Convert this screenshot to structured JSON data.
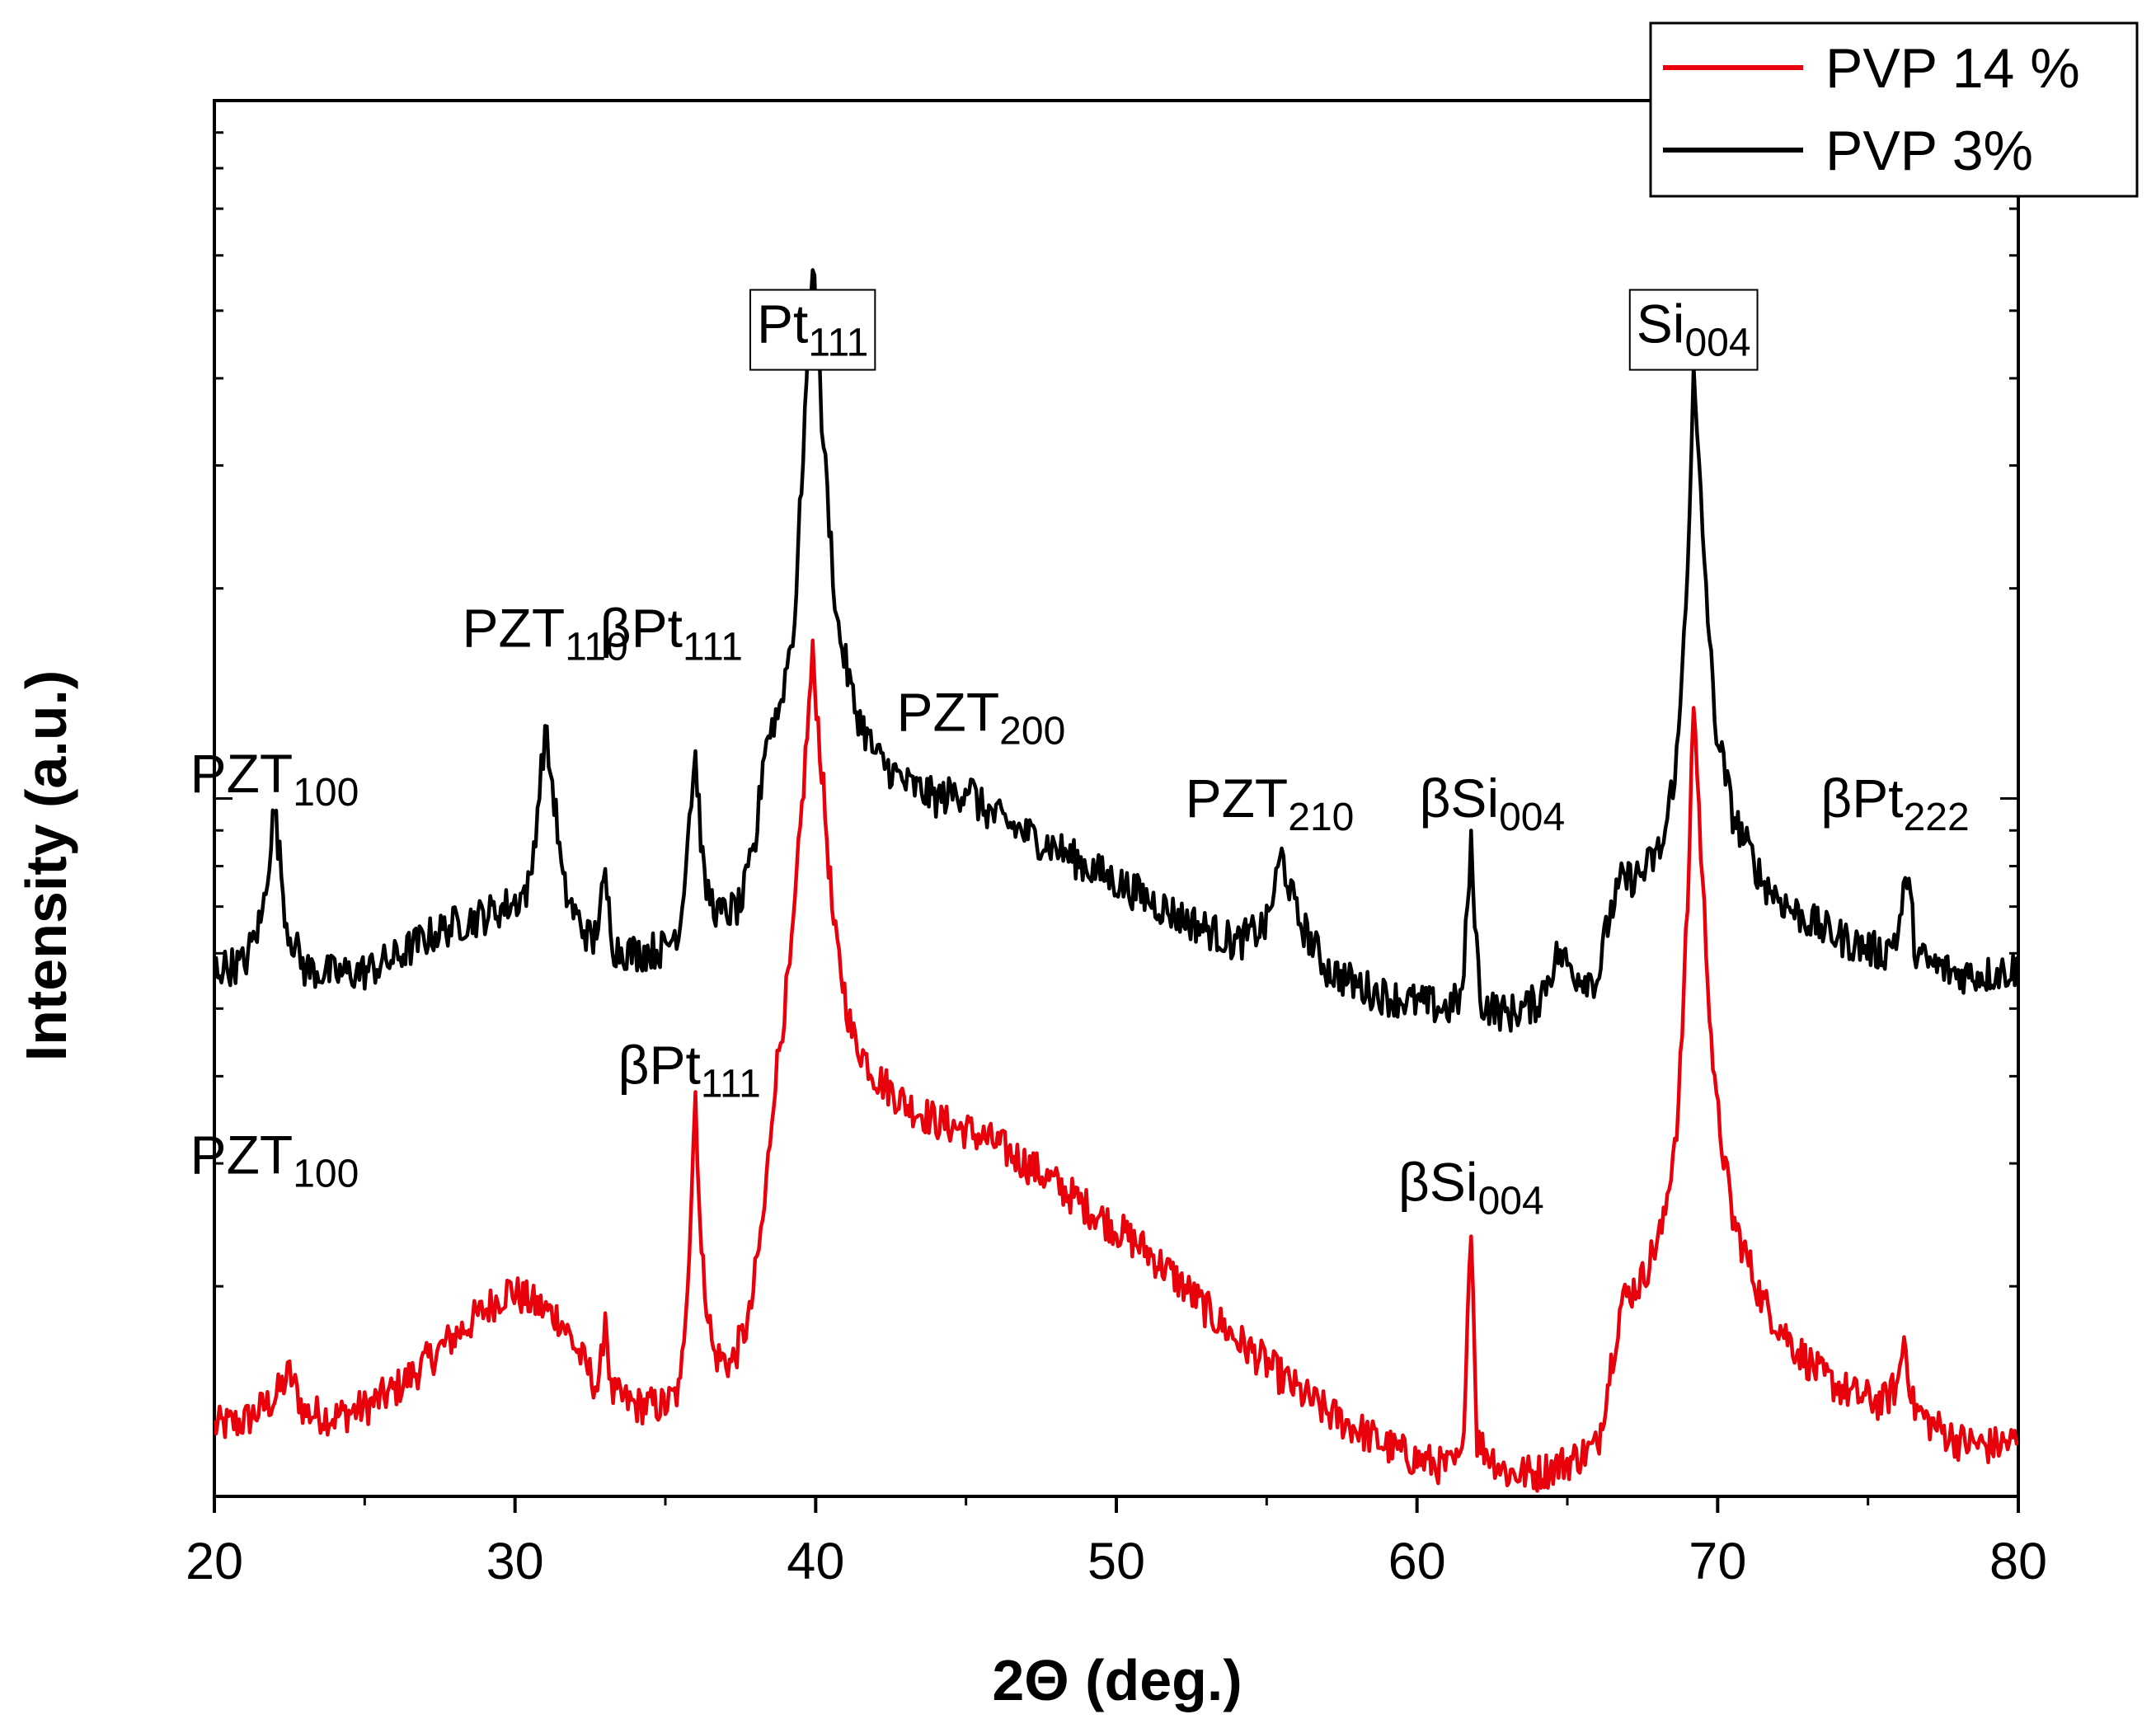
{
  "chart_data": {
    "type": "line",
    "title": "",
    "xlabel": "2Θ (deg.)",
    "ylabel": "Intensity (a.u.)",
    "xlim": [
      20,
      80
    ],
    "x_ticks": [
      "20",
      "30",
      "40",
      "50",
      "60",
      "70",
      "80"
    ],
    "y_scale": "log",
    "y_tick_labels_shown": false,
    "legend_position": "top-right",
    "series": [
      {
        "name": "PVP 14 %",
        "color": "#e8000b",
        "points": [
          [
            20.0,
            1.26
          ],
          [
            21.0,
            1.28
          ],
          [
            22.0,
            1.38
          ],
          [
            22.5,
            1.5
          ],
          [
            23.0,
            1.32
          ],
          [
            24.0,
            1.3
          ],
          [
            25.0,
            1.34
          ],
          [
            26.0,
            1.42
          ],
          [
            27.0,
            1.55
          ],
          [
            28.0,
            1.7
          ],
          [
            29.0,
            1.85
          ],
          [
            29.8,
            1.98
          ],
          [
            30.5,
            1.9
          ],
          [
            31.5,
            1.8
          ],
          [
            32.3,
            1.55
          ],
          [
            32.8,
            1.42
          ],
          [
            33.0,
            1.85
          ],
          [
            33.2,
            1.4
          ],
          [
            34.0,
            1.35
          ],
          [
            35.0,
            1.35
          ],
          [
            35.5,
            1.42
          ],
          [
            35.8,
            2.3
          ],
          [
            36.0,
            3.8
          ],
          [
            36.2,
            2.2
          ],
          [
            36.6,
            1.6
          ],
          [
            37.2,
            1.55
          ],
          [
            37.8,
            1.8
          ],
          [
            38.3,
            2.6
          ],
          [
            38.6,
            3.8
          ],
          [
            39.2,
            6.0
          ],
          [
            39.6,
            10.5
          ],
          [
            39.9,
            16.0
          ],
          [
            40.2,
            11.0
          ],
          [
            40.6,
            6.5
          ],
          [
            41.2,
            4.6
          ],
          [
            42.0,
            4.0
          ],
          [
            43.0,
            3.65
          ],
          [
            44.0,
            3.45
          ],
          [
            45.0,
            3.35
          ],
          [
            46.0,
            3.2
          ],
          [
            47.0,
            3.0
          ],
          [
            48.0,
            2.8
          ],
          [
            49.0,
            2.6
          ],
          [
            50.0,
            2.42
          ],
          [
            51.0,
            2.25
          ],
          [
            52.0,
            2.05
          ],
          [
            53.0,
            1.85
          ],
          [
            54.0,
            1.68
          ],
          [
            55.0,
            1.55
          ],
          [
            56.0,
            1.42
          ],
          [
            57.0,
            1.32
          ],
          [
            58.0,
            1.25
          ],
          [
            59.0,
            1.18
          ],
          [
            60.0,
            1.13
          ],
          [
            61.0,
            1.1
          ],
          [
            61.5,
            1.12
          ],
          [
            61.8,
            2.5
          ],
          [
            62.0,
            1.2
          ],
          [
            63.0,
            1.08
          ],
          [
            64.0,
            1.08
          ],
          [
            65.0,
            1.12
          ],
          [
            66.0,
            1.18
          ],
          [
            66.4,
            1.5
          ],
          [
            66.8,
            1.9
          ],
          [
            67.5,
            2.05
          ],
          [
            68.2,
            2.45
          ],
          [
            68.7,
            3.6
          ],
          [
            69.0,
            7.0
          ],
          [
            69.2,
            14.0
          ],
          [
            69.5,
            7.5
          ],
          [
            69.9,
            3.8
          ],
          [
            70.5,
            2.5
          ],
          [
            71.5,
            1.9
          ],
          [
            72.5,
            1.65
          ],
          [
            73.5,
            1.48
          ],
          [
            74.5,
            1.4
          ],
          [
            75.5,
            1.36
          ],
          [
            76.0,
            1.45
          ],
          [
            76.2,
            1.7
          ],
          [
            76.5,
            1.35
          ],
          [
            77.0,
            1.28
          ],
          [
            78.0,
            1.2
          ],
          [
            79.0,
            1.18
          ],
          [
            80.0,
            1.2
          ]
        ]
      },
      {
        "name": "PVP 3%",
        "color": "#000000",
        "points": [
          [
            20.0,
            5.7
          ],
          [
            21.0,
            5.8
          ],
          [
            21.6,
            6.8
          ],
          [
            22.0,
            9.7
          ],
          [
            22.4,
            6.6
          ],
          [
            23.0,
            5.7
          ],
          [
            24.0,
            5.6
          ],
          [
            25.0,
            5.65
          ],
          [
            26.0,
            5.9
          ],
          [
            27.0,
            6.3
          ],
          [
            28.0,
            6.6
          ],
          [
            29.0,
            6.8
          ],
          [
            30.0,
            7.1
          ],
          [
            30.5,
            7.5
          ],
          [
            31.0,
            12.5
          ],
          [
            31.3,
            10.0
          ],
          [
            31.6,
            7.5
          ],
          [
            32.0,
            6.8
          ],
          [
            32.6,
            6.2
          ],
          [
            33.0,
            7.6
          ],
          [
            33.3,
            6.1
          ],
          [
            34.0,
            6.0
          ],
          [
            35.0,
            6.1
          ],
          [
            35.5,
            6.6
          ],
          [
            35.8,
            9.5
          ],
          [
            36.0,
            11.5
          ],
          [
            36.3,
            7.5
          ],
          [
            36.8,
            6.8
          ],
          [
            37.5,
            7.0
          ],
          [
            38.0,
            8.6
          ],
          [
            38.3,
            12.0
          ],
          [
            38.8,
            13.5
          ],
          [
            39.3,
            18.0
          ],
          [
            39.7,
            40.0
          ],
          [
            39.9,
            60.0
          ],
          [
            40.2,
            35.0
          ],
          [
            40.7,
            18.0
          ],
          [
            41.3,
            13.5
          ],
          [
            42.0,
            11.5
          ],
          [
            43.0,
            10.5
          ],
          [
            44.0,
            10.0
          ],
          [
            44.8,
            10.2
          ],
          [
            45.1,
            10.5
          ],
          [
            45.4,
            9.8
          ],
          [
            46.0,
            9.4
          ],
          [
            47.0,
            8.9
          ],
          [
            48.0,
            8.5
          ],
          [
            49.0,
            8.0
          ],
          [
            50.0,
            7.6
          ],
          [
            51.0,
            7.2
          ],
          [
            52.0,
            6.8
          ],
          [
            53.0,
            6.5
          ],
          [
            54.0,
            6.2
          ],
          [
            55.0,
            6.6
          ],
          [
            55.5,
            8.3
          ],
          [
            56.0,
            6.8
          ],
          [
            57.0,
            5.7
          ],
          [
            58.0,
            5.4
          ],
          [
            59.0,
            5.2
          ],
          [
            60.0,
            5.1
          ],
          [
            61.0,
            5.0
          ],
          [
            61.5,
            5.2
          ],
          [
            61.8,
            8.5
          ],
          [
            62.1,
            5.1
          ],
          [
            63.0,
            4.9
          ],
          [
            64.0,
            5.1
          ],
          [
            64.7,
            6.0
          ],
          [
            65.3,
            5.6
          ],
          [
            66.0,
            5.5
          ],
          [
            66.4,
            6.8
          ],
          [
            66.8,
            7.6
          ],
          [
            67.5,
            7.8
          ],
          [
            68.2,
            8.6
          ],
          [
            68.7,
            12.0
          ],
          [
            69.0,
            22.0
          ],
          [
            69.2,
            40.0
          ],
          [
            69.5,
            24.0
          ],
          [
            69.9,
            13.0
          ],
          [
            70.5,
            9.5
          ],
          [
            71.5,
            7.6
          ],
          [
            72.5,
            6.9
          ],
          [
            73.5,
            6.5
          ],
          [
            74.5,
            6.2
          ],
          [
            75.5,
            6.0
          ],
          [
            76.0,
            6.4
          ],
          [
            76.3,
            7.8
          ],
          [
            76.6,
            6.0
          ],
          [
            77.0,
            5.8
          ],
          [
            78.0,
            5.6
          ],
          [
            79.0,
            5.6
          ],
          [
            80.0,
            5.7
          ]
        ]
      }
    ],
    "annotations": [
      {
        "base": "PZT",
        "sub": "100",
        "x": 22.0,
        "y": 10.2,
        "series": "PVP 3%"
      },
      {
        "base": "PZT",
        "sub": "110",
        "x": 31.0,
        "y": 16.5,
        "series": "PVP 3%"
      },
      {
        "base": "βPt",
        "sub": "111",
        "x": 35.2,
        "y": 16.5,
        "series": "PVP 3%"
      },
      {
        "base": "Pt",
        "sub": "111",
        "x": 39.9,
        "y": 45.0,
        "series": "PVP 3%",
        "boxed": true
      },
      {
        "base": "PZT",
        "sub": "200",
        "x": 45.5,
        "y": 12.5,
        "series": "PVP 3%"
      },
      {
        "base": "PZT",
        "sub": "210",
        "x": 55.1,
        "y": 9.4,
        "series": "PVP 3%"
      },
      {
        "base": "βSi",
        "sub": "004",
        "x": 62.5,
        "y": 9.4,
        "series": "PVP 3%"
      },
      {
        "base": "Si",
        "sub": "004",
        "x": 69.2,
        "y": 45.0,
        "series": "PVP 3%",
        "boxed": true
      },
      {
        "base": "βPt",
        "sub": "222",
        "x": 75.9,
        "y": 9.4,
        "series": "PVP 3%"
      },
      {
        "base": "βPt",
        "sub": "111",
        "x": 35.8,
        "y": 3.9,
        "series": "PVP 14 %"
      },
      {
        "base": "PZT",
        "sub": "100",
        "x": 22.0,
        "y": 2.9,
        "series": "PVP 14 %"
      },
      {
        "base": "βSi",
        "sub": "004",
        "x": 61.8,
        "y": 2.65,
        "series": "PVP 14 %"
      }
    ]
  }
}
